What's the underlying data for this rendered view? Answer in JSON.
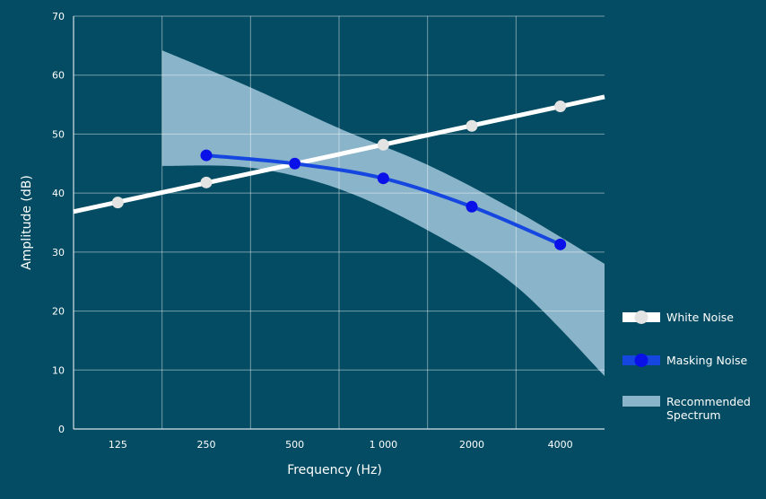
{
  "chart_data": {
    "type": "line",
    "xlabel": "Frequency (Hz)",
    "ylabel": "Amplitude (dB)",
    "ylim": [
      0,
      70
    ],
    "yticks": [
      0,
      10,
      20,
      30,
      40,
      50,
      60,
      70
    ],
    "categories": [
      "125",
      "250",
      "500",
      "1 000",
      "2000",
      "4000"
    ],
    "grid": true,
    "legend_position": "right",
    "series": [
      {
        "name": "White Noise",
        "type": "line",
        "color": "#ffffff",
        "marker_color": "#e3e3e3",
        "x": [
          125,
          250,
          500,
          1000,
          2000,
          4000
        ],
        "values": [
          38.4,
          41.8,
          45.0,
          48.2,
          51.4,
          54.7
        ]
      },
      {
        "name": "Masking Noise",
        "type": "line",
        "color": "#1547e0",
        "marker_color": "#0a10e8",
        "x": [
          250,
          500,
          1000,
          2000,
          4000
        ],
        "values": [
          46.4,
          45.0,
          42.5,
          37.7,
          31.3
        ]
      },
      {
        "name": "Recommended\nSpectrum",
        "legend_lines": [
          "Recommended",
          "Spectrum"
        ],
        "type": "area",
        "color": "#8ab4c9",
        "x": [
          177,
          354,
          707,
          1414,
          2828,
          5657
        ],
        "upper": [
          64.2,
          57.9,
          51.0,
          44.8,
          37.0,
          28.0
        ],
        "lower": [
          44.6,
          44.3,
          40.7,
          33.7,
          24.2,
          9.0
        ]
      }
    ]
  }
}
